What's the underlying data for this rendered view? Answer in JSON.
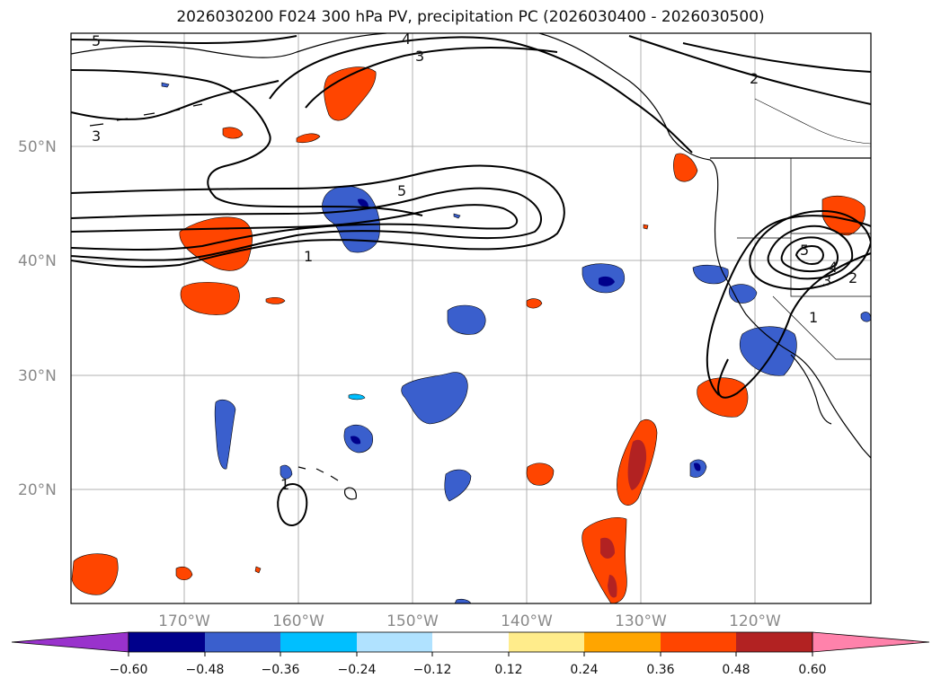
{
  "title": "2026030200 F024 300 hPa PV, precipitation PC (2026030400 - 2026030500)",
  "lat_labels": [
    "50°N",
    "40°N",
    "30°N",
    "20°N"
  ],
  "lon_labels": [
    "170°W",
    "160°W",
    "150°W",
    "140°W",
    "130°W",
    "120°W"
  ],
  "pv_contour_labels": [
    "5",
    "3",
    "4",
    "3",
    "2",
    "5",
    "1",
    "5",
    "4",
    "3",
    "2",
    "1",
    "1"
  ],
  "colorbar": {
    "ticks": [
      "−0.60",
      "−0.48",
      "−0.36",
      "−0.24",
      "−0.12",
      "0.12",
      "0.24",
      "0.36",
      "0.48",
      "0.60"
    ],
    "colors": [
      "#9932CC",
      "#00008B",
      "#3A5FCD",
      "#00BFFF",
      "#B0E2FF",
      "#FFFFFF",
      "#FFEC8B",
      "#FFA500",
      "#FF4500",
      "#B22222",
      "#FF82AB"
    ]
  },
  "colors": {
    "neg_strong": "#00008B",
    "neg_mid": "#3A5FCD",
    "neg_light": "#00BFFF",
    "pos_light": "#FFA500",
    "pos_mid": "#FF4500",
    "pos_strong": "#B22222",
    "contour": "#000000",
    "grid": "#b0b0b0"
  }
}
